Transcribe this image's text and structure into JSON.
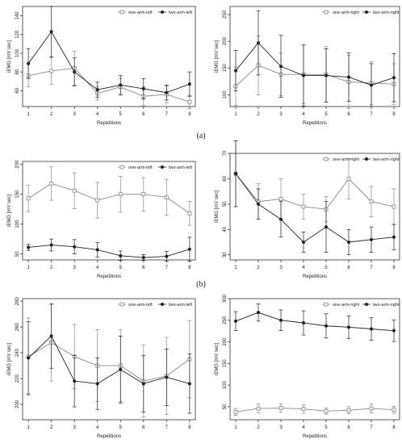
{
  "panel_labels": [
    "(a)",
    "(b)",
    ""
  ],
  "chart_data": [
    {
      "type": "line",
      "xlabel": "Repetitions",
      "ylabel": "iEMG [mV sec]",
      "x": [
        1,
        2,
        3,
        4,
        5,
        6,
        7,
        8
      ],
      "xlim": [
        0.75,
        8.25
      ],
      "ylim": [
        43,
        150
      ],
      "yticks": [
        60,
        80,
        100,
        120,
        140
      ],
      "legend_position": "top-right",
      "series": [
        {
          "name": "one-arm-left",
          "marker": "open-square",
          "color": "#888888",
          "values": [
            76,
            81,
            84,
            57,
            64,
            54,
            56,
            48
          ],
          "error": [
            12,
            14,
            18,
            7,
            9,
            10,
            9,
            7
          ]
        },
        {
          "name": "two-arm-left",
          "marker": "filled-circle",
          "color": "#222222",
          "values": [
            89,
            123,
            80,
            61,
            66,
            62,
            58,
            67
          ],
          "error": [
            16,
            27,
            15,
            8,
            10,
            11,
            8,
            13
          ]
        }
      ]
    },
    {
      "type": "line",
      "xlabel": "Repetitions",
      "ylabel": "iEMG [mV sec]",
      "x": [
        1,
        2,
        3,
        4,
        5,
        6,
        7,
        8
      ],
      "xlim": [
        0.75,
        8.25
      ],
      "ylim": [
        78,
        265
      ],
      "yticks": [
        100,
        150,
        200,
        250
      ],
      "legend_position": "top-right",
      "series": [
        {
          "name": "one-arm-right",
          "marker": "open-square",
          "color": "#888888",
          "values": [
            116,
            155,
            138,
            138,
            138,
            124,
            122,
            120
          ],
          "error": [
            36,
            55,
            40,
            55,
            52,
            50,
            40,
            38
          ]
        },
        {
          "name": "two-arm-right",
          "marker": "filled-circle",
          "color": "#222222",
          "values": [
            145,
            197,
            153,
            136,
            136,
            133,
            118,
            132
          ],
          "error": [
            38,
            60,
            58,
            57,
            50,
            45,
            40,
            45
          ]
        }
      ]
    },
    {
      "type": "line",
      "xlabel": "Repetitions",
      "ylabel": "iEMG [mV sec]",
      "x": [
        1,
        2,
        3,
        4,
        5,
        6,
        7,
        8
      ],
      "xlim": [
        0.75,
        8.25
      ],
      "ylim": [
        40,
        205
      ],
      "yticks": [
        50,
        100,
        150,
        200
      ],
      "legend_position": "top-right",
      "series": [
        {
          "name": "one-arm-left",
          "marker": "open-square",
          "color": "#888888",
          "values": [
            143,
            168,
            156,
            140,
            150,
            150,
            145,
            118
          ],
          "error": [
            22,
            28,
            30,
            30,
            30,
            28,
            30,
            20
          ]
        },
        {
          "name": "two-arm-left",
          "marker": "filled-circle",
          "color": "#222222",
          "values": [
            61,
            65,
            62,
            57,
            47,
            44,
            46,
            58
          ],
          "error": [
            5,
            10,
            12,
            12,
            8,
            5,
            8,
            20
          ]
        }
      ]
    },
    {
      "type": "line",
      "xlabel": "Repetitions",
      "ylabel": "iEMG [mV sec]",
      "x": [
        1,
        2,
        3,
        4,
        5,
        6,
        7,
        8
      ],
      "xlim": [
        0.75,
        8.25
      ],
      "ylim": [
        28,
        70
      ],
      "yticks": [
        30,
        40,
        50,
        60,
        70
      ],
      "legend_position": "top-right",
      "series": [
        {
          "name": "one-arm-right",
          "marker": "open-square",
          "color": "#888888",
          "values": [
            62,
            51,
            52,
            49,
            48,
            60,
            51,
            49
          ],
          "error": [
            13,
            7,
            8,
            5,
            5,
            8,
            6,
            7
          ]
        },
        {
          "name": "two-arm-right",
          "marker": "filled-circle",
          "color": "#222222",
          "values": [
            62,
            50,
            44,
            35,
            41,
            35,
            36,
            37
          ],
          "error": [
            13,
            6,
            7,
            4,
            10,
            5,
            5,
            5
          ]
        }
      ]
    },
    {
      "type": "line",
      "xlabel": "Repetitions",
      "ylabel": "iEMG [mV sec]",
      "x": [
        1,
        2,
        3,
        4,
        5,
        6,
        7,
        8
      ],
      "xlim": [
        0.75,
        8.25
      ],
      "ylim": [
        188,
        282
      ],
      "yticks": [
        200,
        220,
        240,
        260,
        280
      ],
      "legend_position": "top-right",
      "series": [
        {
          "name": "one-arm-left",
          "marker": "open-square",
          "color": "#888888",
          "values": [
            237,
            248,
            237,
            230,
            230,
            218,
            222,
            235
          ],
          "error": [
            30,
            30,
            25,
            28,
            28,
            28,
            30,
            30
          ]
        },
        {
          "name": "two-arm-left",
          "marker": "filled-circle",
          "color": "#222222",
          "values": [
            236,
            253,
            218,
            216,
            227,
            216,
            221,
            216
          ],
          "error": [
            28,
            25,
            20,
            20,
            26,
            22,
            22,
            23
          ]
        }
      ]
    },
    {
      "type": "line",
      "xlabel": "Repetitions",
      "ylabel": "iEMG [mV sec]",
      "x": [
        1,
        2,
        3,
        4,
        5,
        6,
        7,
        8
      ],
      "xlim": [
        0.75,
        8.25
      ],
      "ylim": [
        20,
        300
      ],
      "yticks": [
        50,
        100,
        150,
        200,
        250,
        300
      ],
      "legend_position": "top-right",
      "series": [
        {
          "name": "one-arm-right",
          "marker": "open-square",
          "color": "#888888",
          "values": [
            38,
            46,
            47,
            45,
            40,
            42,
            46,
            43
          ],
          "error": [
            8,
            10,
            10,
            10,
            7,
            8,
            10,
            8
          ]
        },
        {
          "name": "two-arm-right",
          "marker": "filled-circle",
          "color": "#222222",
          "values": [
            248,
            268,
            250,
            244,
            237,
            234,
            230,
            226
          ],
          "error": [
            22,
            20,
            24,
            28,
            28,
            26,
            26,
            25
          ]
        }
      ]
    }
  ]
}
